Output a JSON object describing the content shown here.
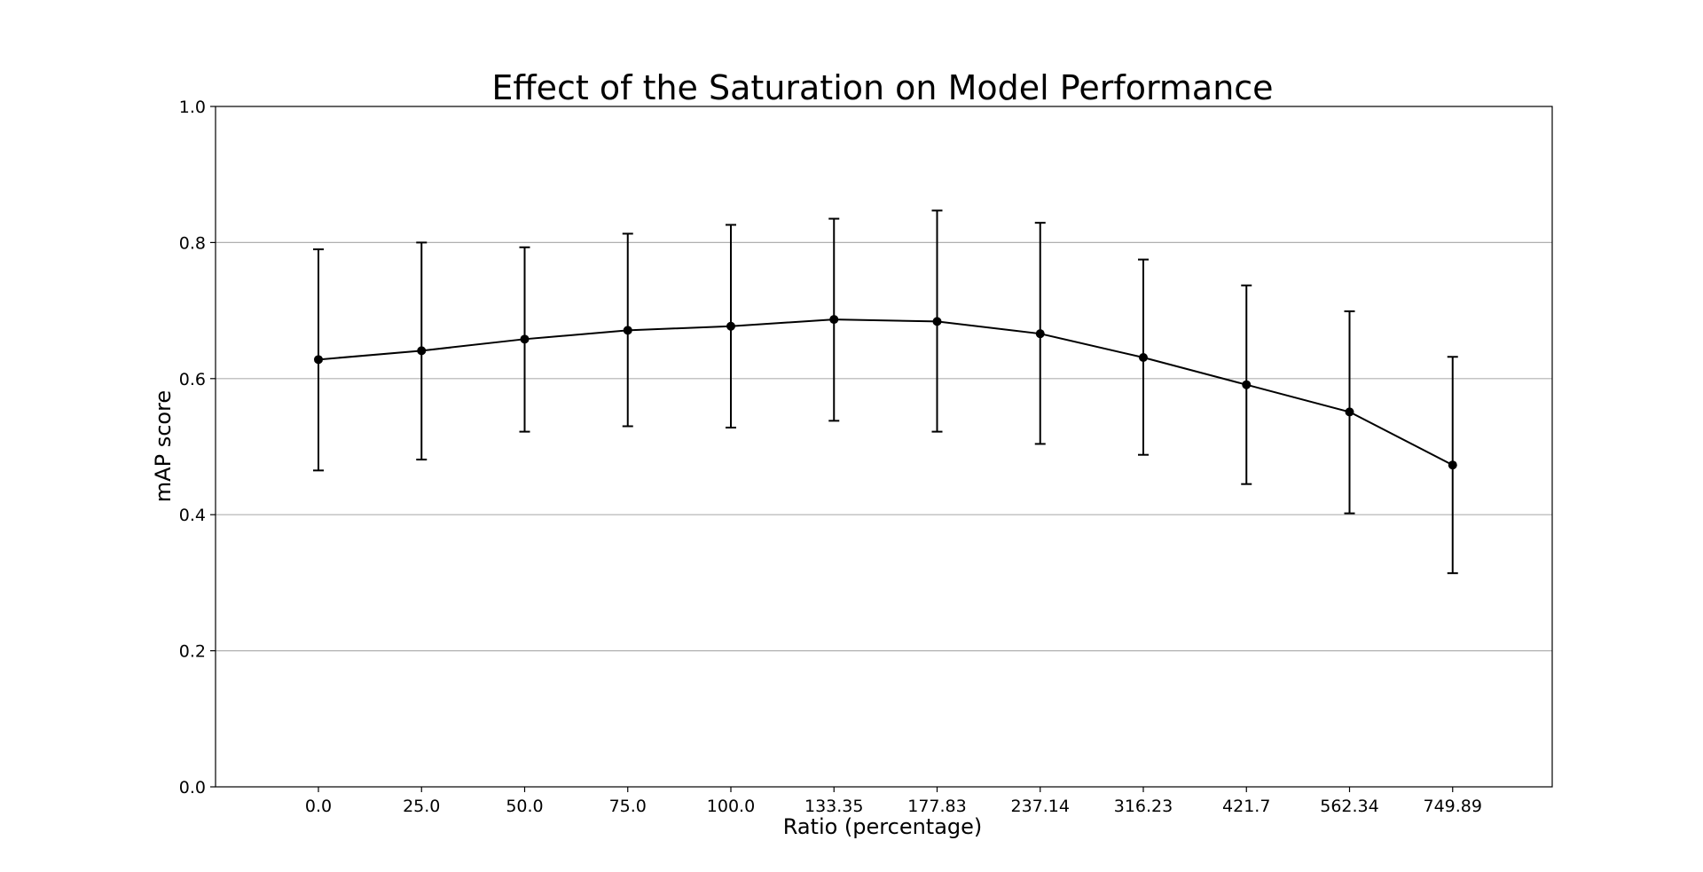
{
  "chart_data": {
    "type": "line",
    "title": "Effect of the Saturation on Model Performance",
    "xlabel": "Ratio (percentage)",
    "ylabel": "mAP score",
    "categories": [
      "0.0",
      "25.0",
      "50.0",
      "75.0",
      "100.0",
      "133.35",
      "177.83",
      "237.14",
      "316.23",
      "421.7",
      "562.34",
      "749.89"
    ],
    "series": [
      {
        "values": [
          0.628,
          0.641,
          0.658,
          0.671,
          0.677,
          0.687,
          0.684,
          0.666,
          0.631,
          0.591,
          0.551,
          0.473
        ],
        "err_low": [
          0.465,
          0.481,
          0.522,
          0.53,
          0.528,
          0.538,
          0.522,
          0.504,
          0.488,
          0.445,
          0.402,
          0.314
        ],
        "err_high": [
          0.79,
          0.8,
          0.793,
          0.813,
          0.826,
          0.835,
          0.847,
          0.829,
          0.775,
          0.737,
          0.699,
          0.632
        ]
      }
    ],
    "ylim": [
      0.0,
      1.0
    ],
    "yticks": [
      "0.0",
      "0.2",
      "0.4",
      "0.6",
      "0.8",
      "1.0"
    ],
    "grid": "horizontal",
    "line_color": "#000000",
    "grid_color": "#b0b0b0"
  }
}
